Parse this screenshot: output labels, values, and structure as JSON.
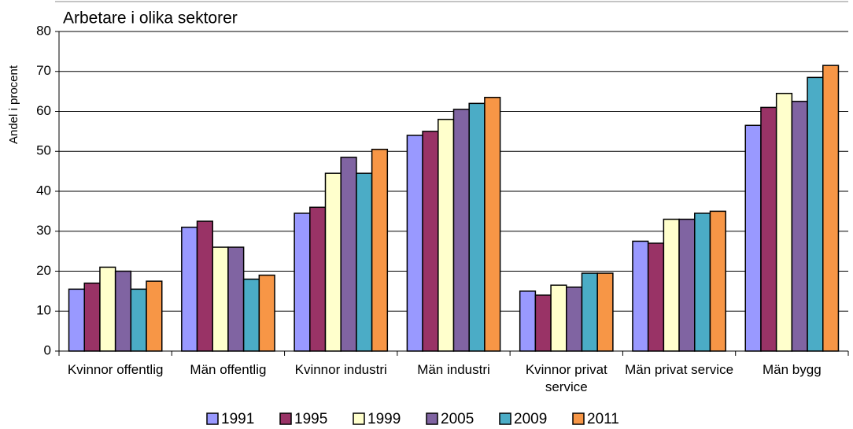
{
  "chart_data": {
    "type": "bar",
    "title": "Arbetare i olika sektorer",
    "y_label": "Andel i procent",
    "categories": [
      "Kvinnor offentlig",
      "Män offentlig",
      "Kvinnor industri",
      "Män industri",
      "Kvinnor privat service",
      "Män privat service",
      "Män bygg"
    ],
    "series": [
      {
        "name": "1991",
        "color": "#9999ff",
        "values": [
          15.5,
          31,
          34.5,
          54,
          15,
          27.5,
          56.5
        ]
      },
      {
        "name": "1995",
        "color": "#993366",
        "values": [
          17,
          32.5,
          36,
          55,
          14,
          27,
          61
        ]
      },
      {
        "name": "1999",
        "color": "#ffffcc",
        "values": [
          21,
          26,
          44.5,
          58,
          16.5,
          33,
          64.5
        ]
      },
      {
        "name": "2005",
        "color": "#8064a2",
        "values": [
          20,
          26,
          48.5,
          60.5,
          16,
          33,
          62.5
        ]
      },
      {
        "name": "2009",
        "color": "#4bacc6",
        "values": [
          15.5,
          18,
          44.5,
          62,
          19.5,
          34.5,
          68.5
        ]
      },
      {
        "name": "2011",
        "color": "#f79646",
        "values": [
          17.5,
          19,
          50.5,
          63.5,
          19.5,
          35,
          71.5
        ]
      }
    ],
    "ylim": [
      0,
      80
    ],
    "yticks": [
      0,
      10,
      20,
      30,
      40,
      50,
      60,
      70,
      80
    ],
    "grid": true,
    "legend": "bottom"
  }
}
